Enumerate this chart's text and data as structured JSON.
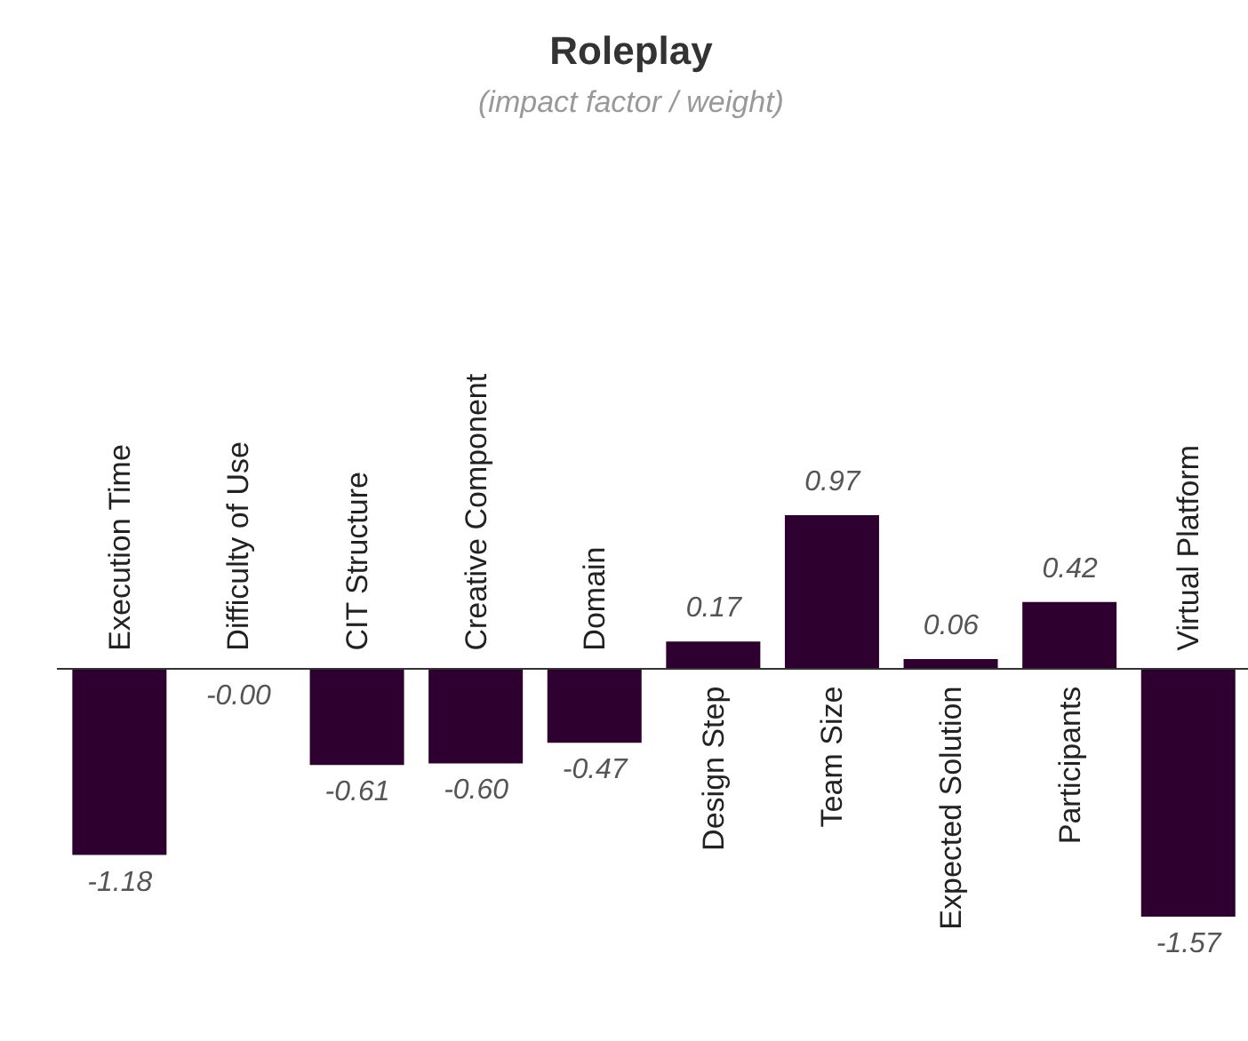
{
  "chart_data": {
    "type": "bar",
    "title": "Roleplay",
    "subtitle": "(impact factor / weight)",
    "categories": [
      "Execution Time",
      "Difficulty of Use",
      "CIT Structure",
      "Creative Component",
      "Domain",
      "Design Step",
      "Team Size",
      "Expected Solution",
      "Participants",
      "Virtual Platform"
    ],
    "values": [
      -1.18,
      0,
      -0.61,
      -0.6,
      -0.47,
      0.17,
      0.97,
      0.06,
      0.42,
      -1.57
    ],
    "value_labels": [
      "-1.18",
      "-0.00",
      "-0.61",
      "-0.60",
      "-0.47",
      "0.17",
      "0.97",
      "0.06",
      "0.42",
      "-1.57"
    ],
    "color": "#2d0030"
  }
}
